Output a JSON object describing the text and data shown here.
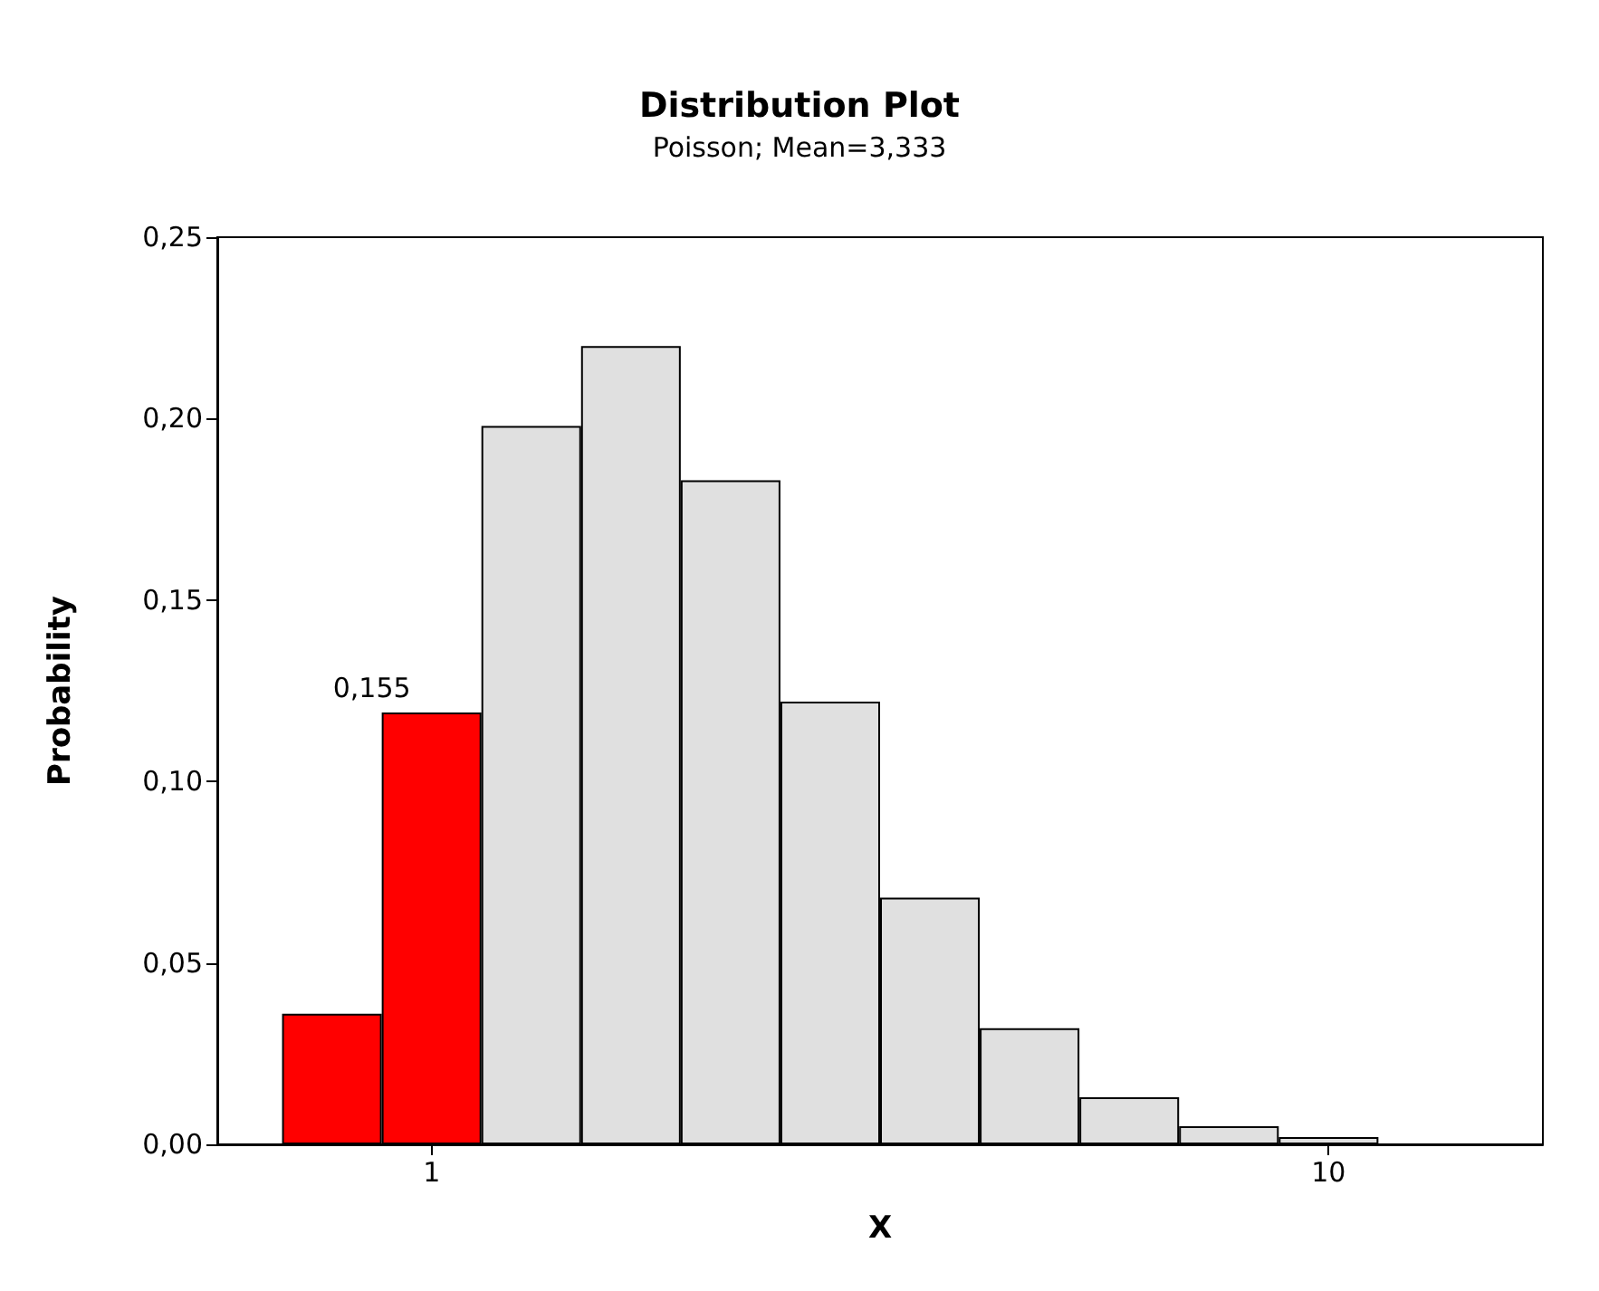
{
  "chart_data": {
    "type": "bar",
    "title": "Distribution Plot",
    "subtitle": "Poisson; Mean=3,333",
    "xlabel": "X",
    "ylabel": "Probability",
    "x": [
      0,
      1,
      2,
      3,
      4,
      5,
      6,
      7,
      8,
      9,
      10
    ],
    "values": [
      0.036,
      0.119,
      0.198,
      0.22,
      0.183,
      0.122,
      0.068,
      0.032,
      0.013,
      0.005,
      0.002
    ],
    "colors": [
      "#ff0000",
      "#ff0000",
      "#e0e0e0",
      "#e0e0e0",
      "#e0e0e0",
      "#e0e0e0",
      "#e0e0e0",
      "#e0e0e0",
      "#e0e0e0",
      "#e0e0e0",
      "#e0e0e0"
    ],
    "xlim": [
      -1.15,
      12.15
    ],
    "xticks": [
      1,
      10
    ],
    "ylim": [
      0,
      0.25
    ],
    "yticks": [
      {
        "value": 0,
        "label": "0,00"
      },
      {
        "value": 0.05,
        "label": "0,05"
      },
      {
        "value": 0.1,
        "label": "0,10"
      },
      {
        "value": 0.15,
        "label": "0,15"
      },
      {
        "value": 0.2,
        "label": "0,20"
      },
      {
        "value": 0.25,
        "label": "0,25"
      }
    ],
    "annotations": [
      {
        "text": "0,155",
        "x": 1,
        "y": 0.119
      }
    ]
  }
}
